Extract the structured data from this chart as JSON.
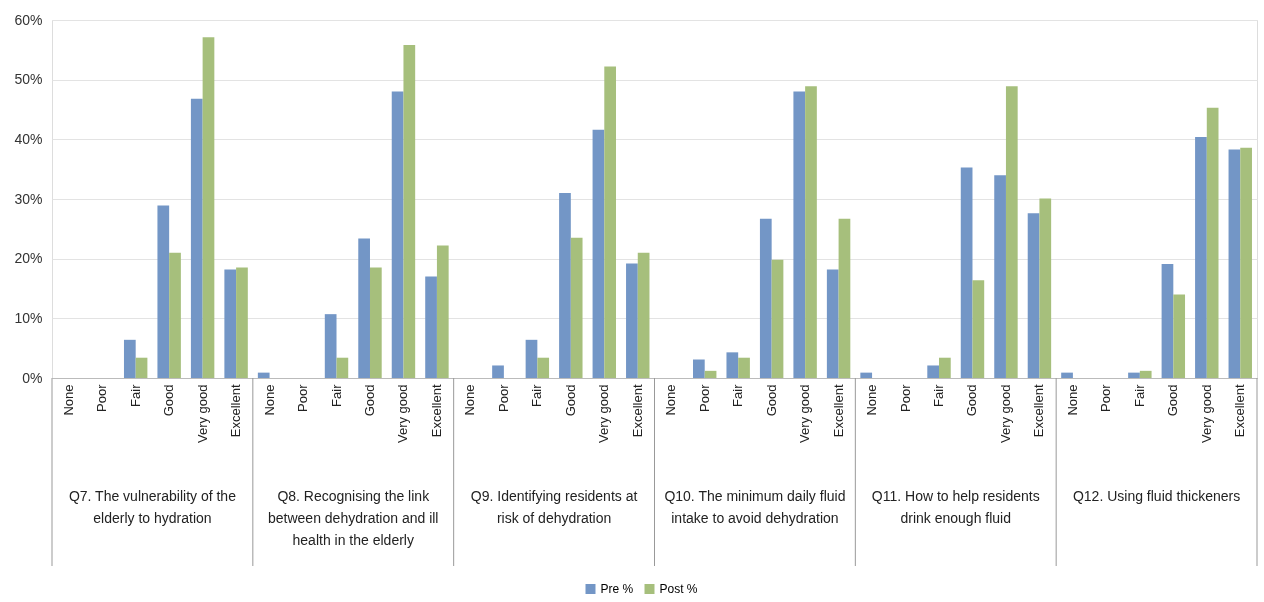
{
  "chart_data": {
    "type": "bar",
    "categories": [
      "None",
      "Poor",
      "Fair",
      "Good",
      "Very good",
      "Excellent",
      "None",
      "Poor",
      "Fair",
      "Good",
      "Very good",
      "Excellent",
      "None",
      "Poor",
      "Fair",
      "Good",
      "Very good",
      "Excellent",
      "None",
      "Poor",
      "Fair",
      "Good",
      "Very good",
      "Excellent",
      "None",
      "Poor",
      "Fair",
      "Good",
      "Very good",
      "Excellent",
      "None",
      "Poor",
      "Fair",
      "Good",
      "Very good",
      "Excellent"
    ],
    "series": [
      {
        "name": "Pre %",
        "color": "#7396c6",
        "values": [
          0,
          0,
          6.4,
          28.9,
          46.8,
          18.2,
          0.9,
          0,
          10.7,
          23.4,
          48.0,
          17.0,
          0,
          2.1,
          6.4,
          31.0,
          41.6,
          19.2,
          0,
          3.1,
          4.3,
          26.7,
          48.0,
          18.2,
          0.9,
          0,
          2.1,
          35.3,
          34.0,
          27.6,
          0.9,
          0,
          0.9,
          19.1,
          40.4,
          38.3
        ]
      },
      {
        "name": "Post %",
        "color": "#a6bf7c",
        "values": [
          0,
          0,
          3.4,
          21.0,
          57.1,
          18.5,
          0,
          0,
          3.4,
          18.5,
          55.8,
          22.2,
          0,
          0,
          3.4,
          23.5,
          52.2,
          21.0,
          0,
          1.2,
          3.4,
          19.8,
          48.9,
          26.7,
          0,
          0,
          3.4,
          16.4,
          48.9,
          30.1,
          0,
          0,
          1.2,
          14.0,
          45.3,
          38.6
        ]
      }
    ],
    "ylim": [
      0,
      60
    ],
    "yticks": [
      {
        "value": 0,
        "label": "0%"
      },
      {
        "value": 10,
        "label": "10%"
      },
      {
        "value": 20,
        "label": "20%"
      },
      {
        "value": 30,
        "label": "30%"
      },
      {
        "value": 40,
        "label": "40%"
      },
      {
        "value": 50,
        "label": "50%"
      },
      {
        "value": 60,
        "label": "60%"
      }
    ],
    "grid": "y",
    "legend": "bottom",
    "annotations": [
      "Q7. The vulnerability of the elderly to hydration",
      "Q8. Recognising the link between dehydration and ill health in the elderly",
      "Q9. Identifying residents at risk of dehydration",
      "Q10. The minimum daily fluid intake to avoid dehydration",
      "Q11. How to help residents drink enough fluid",
      "Q12. Using fluid thickeners"
    ]
  }
}
